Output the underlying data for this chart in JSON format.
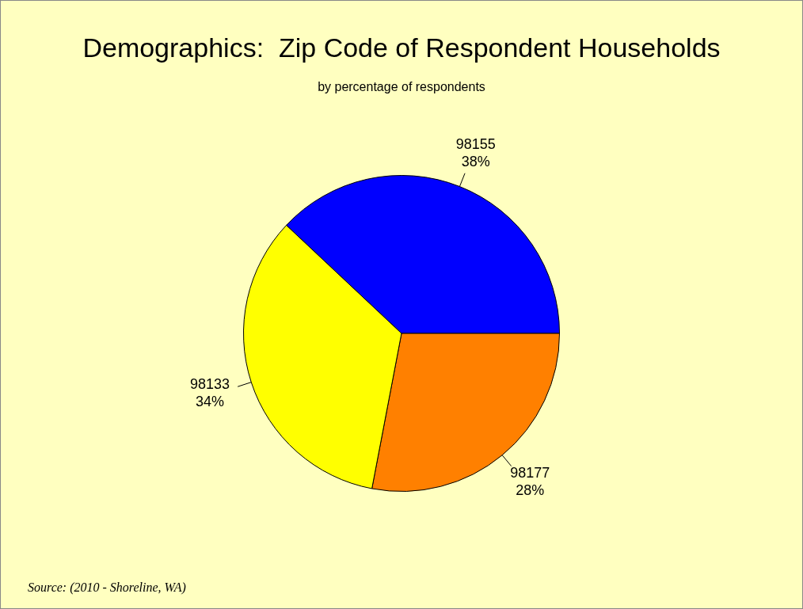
{
  "chart_data": {
    "type": "pie",
    "title": "Demographics:  Zip Code of Respondent Households",
    "subtitle": "by percentage of respondents",
    "categories": [
      "98155",
      "98177",
      "98133"
    ],
    "values": [
      38,
      28,
      34
    ],
    "value_labels": [
      "38%",
      "28%",
      "34%"
    ],
    "colors": [
      "#0000ff",
      "#ff8000",
      "#ffff00"
    ],
    "legend": false,
    "annotations": [
      "Source: (2010 - Shoreline, WA)"
    ]
  }
}
